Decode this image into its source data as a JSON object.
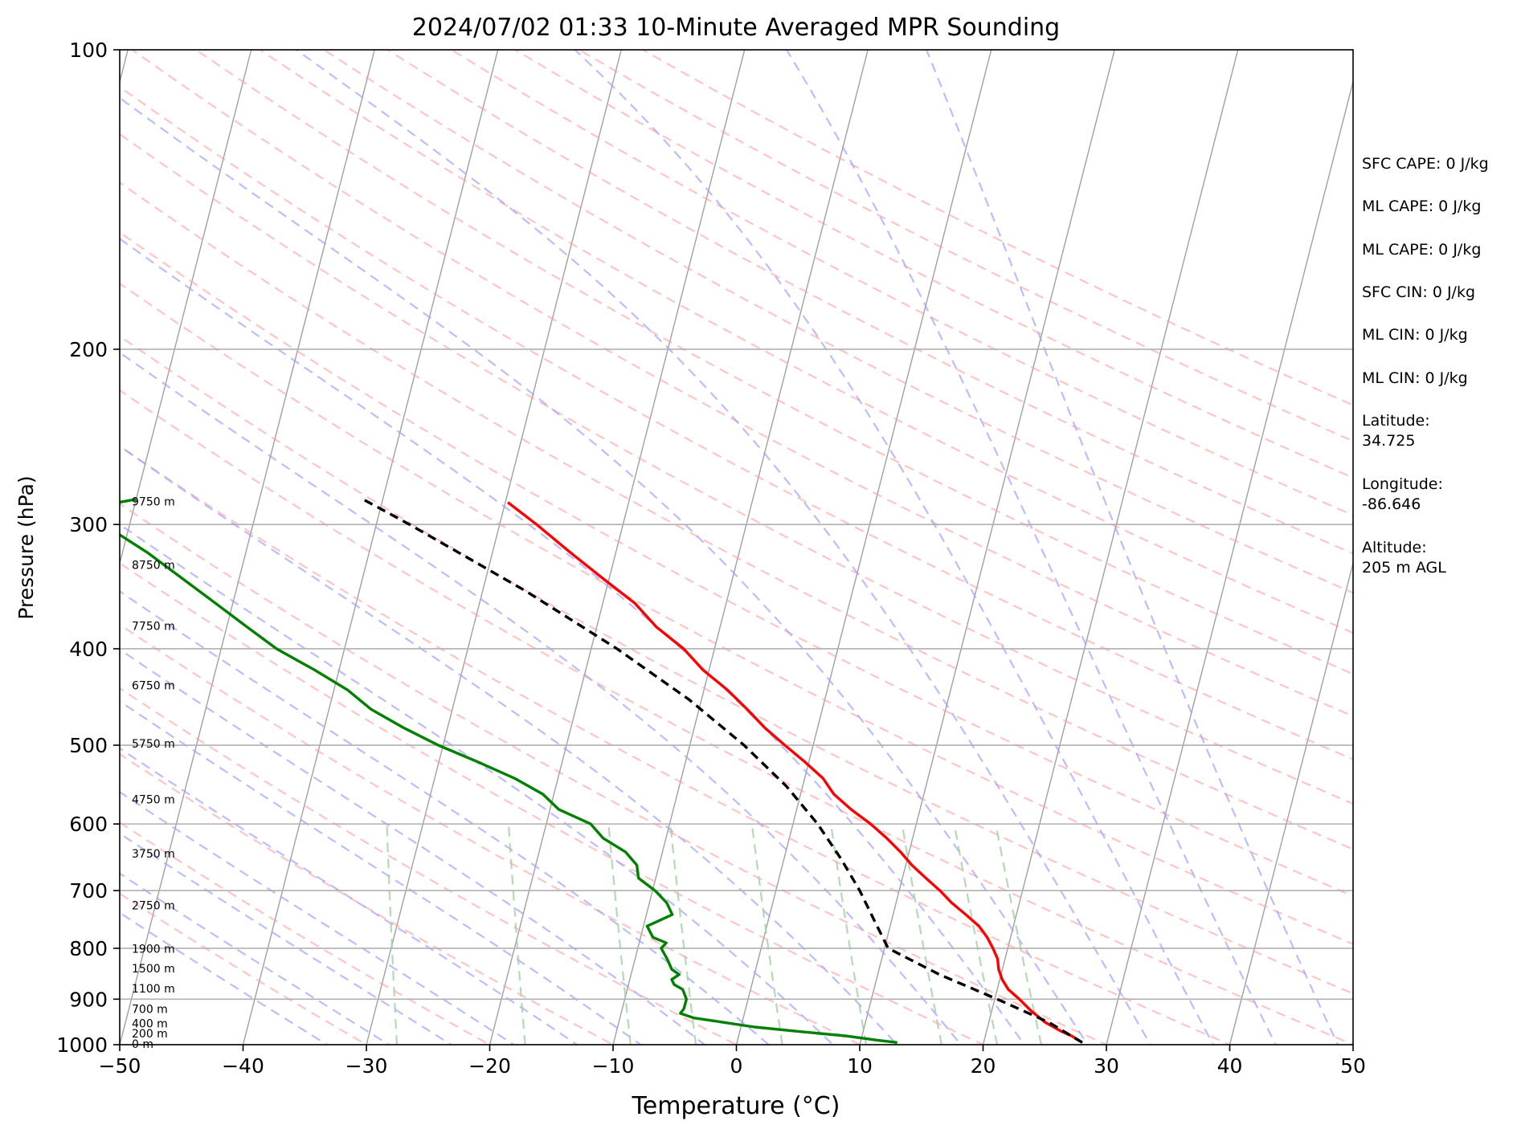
{
  "chart_data": {
    "type": "line",
    "title": "2024/07/02 01:33 10-Minute Averaged MPR Sounding",
    "xlabel": "Temperature (°C)",
    "ylabel": "Pressure (hPa)",
    "xlim": [
      -50,
      50
    ],
    "ylim": [
      1000,
      100
    ],
    "y_scale": "log",
    "skew": "skew-T log-P",
    "x_ticks": [
      -50,
      -40,
      -30,
      -20,
      -10,
      0,
      10,
      20,
      30,
      40,
      50
    ],
    "x_tick_labels": [
      "−50",
      "−40",
      "−30",
      "−20",
      "−10",
      "0",
      "10",
      "20",
      "30",
      "40",
      "50"
    ],
    "y_ticks": [
      1000,
      900,
      800,
      700,
      600,
      500,
      400,
      300,
      200,
      100
    ],
    "y_tick_labels": [
      "1000",
      "900",
      "800",
      "700",
      "600",
      "500",
      "400",
      "300",
      "200",
      "100"
    ],
    "grid": true,
    "height_labels": [
      {
        "label": "0 m",
        "p": 1000
      },
      {
        "label": "200 m",
        "p": 976
      },
      {
        "label": "400 m",
        "p": 954
      },
      {
        "label": "700 m",
        "p": 922
      },
      {
        "label": "1100 m",
        "p": 880
      },
      {
        "label": "1500 m",
        "p": 840
      },
      {
        "label": "1900 m",
        "p": 802
      },
      {
        "label": "2750 m",
        "p": 726
      },
      {
        "label": "3750 m",
        "p": 644
      },
      {
        "label": "4750 m",
        "p": 568
      },
      {
        "label": "5750 m",
        "p": 499
      },
      {
        "label": "6750 m",
        "p": 436
      },
      {
        "label": "7750 m",
        "p": 380
      },
      {
        "label": "8750 m",
        "p": 330
      },
      {
        "label": "9750 m",
        "p": 285
      }
    ],
    "series": [
      {
        "kind": "temperature",
        "color": "#ff0000",
        "style": "solid",
        "p": [
          995,
          980,
          970,
          950,
          925,
          900,
          880,
          860,
          840,
          820,
          800,
          780,
          760,
          740,
          720,
          700,
          680,
          660,
          640,
          620,
          600,
          580,
          560,
          540,
          520,
          500,
          480,
          460,
          440,
          420,
          400,
          380,
          360,
          340,
          320,
          300,
          285
        ],
        "t": [
          28.0,
          27.0,
          26.1,
          24.6,
          23.2,
          22.0,
          20.9,
          20.2,
          19.7,
          19.4,
          18.8,
          18.1,
          17.2,
          15.9,
          14.5,
          13.3,
          11.9,
          10.5,
          9.3,
          7.9,
          6.3,
          4.4,
          2.7,
          1.5,
          -0.3,
          -2.3,
          -4.3,
          -6.1,
          -8.1,
          -10.5,
          -12.5,
          -15.2,
          -17.4,
          -20.5,
          -23.7,
          -27.0,
          -29.8
        ]
      },
      {
        "kind": "dewpoint",
        "color": "#008000",
        "style": "solid",
        "p": [
          995,
          990,
          980,
          970,
          960,
          950,
          940,
          930,
          920,
          900,
          880,
          870,
          860,
          850,
          840,
          820,
          800,
          790,
          780,
          760,
          740,
          720,
          700,
          680,
          660,
          640,
          620,
          600,
          580,
          560,
          540,
          520,
          500,
          480,
          460,
          440,
          420,
          400,
          380,
          360,
          340,
          320,
          300,
          290,
          283
        ],
        "td": [
          13.0,
          11.4,
          8.7,
          4.8,
          1.1,
          -1.4,
          -4.0,
          -5.2,
          -5.0,
          -5.0,
          -5.5,
          -6.3,
          -6.6,
          -6.1,
          -6.8,
          -7.4,
          -8.1,
          -7.8,
          -9.0,
          -9.7,
          -7.9,
          -8.6,
          -9.8,
          -11.4,
          -11.8,
          -13.0,
          -15.1,
          -16.4,
          -19.3,
          -20.9,
          -23.5,
          -26.8,
          -30.4,
          -33.6,
          -36.6,
          -38.9,
          -42.0,
          -45.5,
          -48.4,
          -51.4,
          -54.6,
          -58.0,
          -62.1,
          -64.6,
          -60.0
        ]
      },
      {
        "kind": "parcel",
        "color": "#000000",
        "style": "dashed",
        "p": [
          995,
          950,
          900,
          850,
          800,
          750,
          700,
          650,
          600,
          550,
          500,
          450,
          400,
          350,
          300,
          283
        ],
        "t": [
          28.0,
          24.9,
          20.2,
          15.0,
          10.3,
          8.6,
          6.8,
          4.6,
          2.0,
          -1.3,
          -5.6,
          -11.0,
          -17.9,
          -26.5,
          -37.3,
          -41.6
        ]
      }
    ],
    "background_lines": {
      "isotherms_color": "#a0a0a0",
      "dry_adiabats_color": "#ff9c9c",
      "moist_adiabats_color": "#a0a0ff",
      "mixing_ratio_color": "#a0d2a0"
    },
    "annotations": [
      "SFC CAPE: 0 J/kg",
      "ML CAPE: 0 J/kg",
      "ML CAPE: 0 J/kg",
      "SFC CIN: 0 J/kg",
      "ML CIN: 0 J/kg",
      "ML CIN: 0 J/kg",
      "Latitude:\n34.725",
      "Longitude:\n-86.646",
      "Altitude:\n205 m AGL"
    ]
  }
}
